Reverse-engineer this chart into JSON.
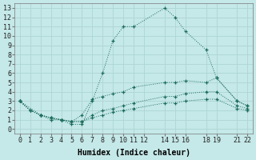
{
  "background_color": "#c5e8e8",
  "grid_color": "#aed4d4",
  "line_color": "#1a6b5a",
  "xlabel": "Humidex (Indice chaleur)",
  "xlim": [
    -0.5,
    22.5
  ],
  "ylim": [
    -0.5,
    13.5
  ],
  "xticks": [
    0,
    1,
    2,
    3,
    4,
    5,
    6,
    7,
    8,
    9,
    10,
    11,
    12,
    14,
    15,
    16,
    18,
    19,
    21,
    22
  ],
  "xtick_labels": [
    "0",
    "1",
    "2",
    "3",
    "4",
    "5",
    "6",
    "7",
    "8",
    "9",
    "10",
    "11",
    "12",
    "14",
    "15",
    "16",
    "18",
    "19",
    "21",
    "22"
  ],
  "yticks": [
    0,
    1,
    2,
    3,
    4,
    5,
    6,
    7,
    8,
    9,
    10,
    11,
    12,
    13
  ],
  "series": [
    {
      "x": [
        0,
        1,
        2,
        3,
        4,
        5,
        6,
        7,
        8,
        9,
        10,
        11,
        14,
        15,
        16,
        18,
        19,
        21,
        22
      ],
      "y": [
        3,
        2,
        1.5,
        1,
        1,
        0.5,
        0.5,
        3,
        6,
        9.5,
        11,
        11,
        13,
        12,
        10.5,
        8.5,
        5.5,
        3,
        2.5
      ]
    },
    {
      "x": [
        0,
        2,
        3,
        4,
        5,
        6,
        7,
        8,
        9,
        10,
        11,
        14,
        15,
        16,
        18,
        19,
        21,
        22
      ],
      "y": [
        3,
        1.5,
        1.2,
        1,
        0.8,
        1.5,
        3.2,
        3.5,
        3.8,
        4,
        4.5,
        5,
        5,
        5.2,
        5,
        5.5,
        3,
        2.5
      ]
    },
    {
      "x": [
        0,
        1,
        2,
        3,
        4,
        5,
        6,
        7,
        8,
        9,
        10,
        11,
        14,
        15,
        16,
        18,
        19,
        21,
        22
      ],
      "y": [
        3,
        2,
        1.5,
        1.2,
        1,
        0.8,
        0.8,
        1.5,
        2,
        2.2,
        2.5,
        2.8,
        3.5,
        3.5,
        3.8,
        4,
        4,
        2.5,
        2.2
      ]
    },
    {
      "x": [
        0,
        1,
        2,
        3,
        4,
        5,
        6,
        7,
        8,
        9,
        10,
        11,
        14,
        15,
        16,
        18,
        19,
        21,
        22
      ],
      "y": [
        3,
        2,
        1.5,
        1.2,
        1,
        0.8,
        0.8,
        1.2,
        1.5,
        1.8,
        2,
        2.2,
        2.8,
        2.8,
        3,
        3.2,
        3.2,
        2.2,
        2.0
      ]
    }
  ],
  "font_size": 6
}
